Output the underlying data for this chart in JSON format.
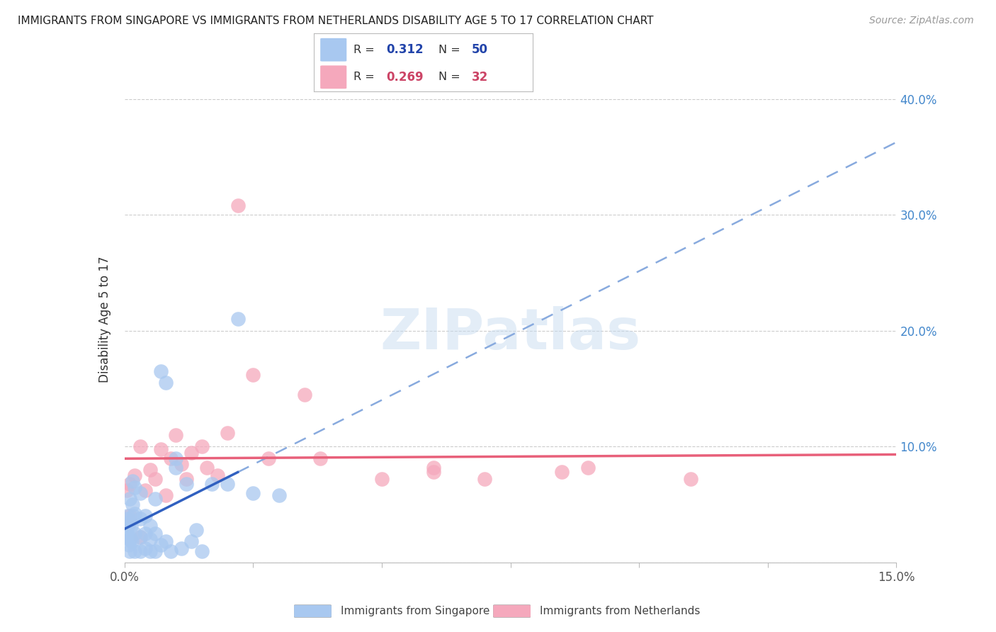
{
  "title": "IMMIGRANTS FROM SINGAPORE VS IMMIGRANTS FROM NETHERLANDS DISABILITY AGE 5 TO 17 CORRELATION CHART",
  "source": "Source: ZipAtlas.com",
  "ylabel": "Disability Age 5 to 17",
  "xlim": [
    0.0,
    0.15
  ],
  "ylim": [
    0.0,
    0.42
  ],
  "color_singapore": "#A8C8F0",
  "color_netherlands": "#F5A8BC",
  "line_color_singapore_solid": "#3060C0",
  "line_color_singapore_dash": "#88AADE",
  "line_color_netherlands": "#E8607A",
  "watermark_color": "#C8DCF0",
  "watermark": "ZIPatlas",
  "r_sg": "0.312",
  "n_sg": "50",
  "r_nl": "0.269",
  "n_nl": "32",
  "legend_text_color": "#2244AA",
  "legend_r_color_sg": "#2244AA",
  "legend_r_color_nl": "#CC4466",
  "sg_x": [
    0.0003,
    0.0005,
    0.0006,
    0.0007,
    0.0008,
    0.0009,
    0.001,
    0.001,
    0.001,
    0.001,
    0.0012,
    0.0013,
    0.0014,
    0.0015,
    0.0016,
    0.0017,
    0.002,
    0.002,
    0.002,
    0.002,
    0.003,
    0.003,
    0.003,
    0.003,
    0.004,
    0.004,
    0.004,
    0.005,
    0.005,
    0.005,
    0.006,
    0.006,
    0.006,
    0.007,
    0.007,
    0.008,
    0.008,
    0.009,
    0.01,
    0.01,
    0.011,
    0.012,
    0.013,
    0.014,
    0.015,
    0.017,
    0.02,
    0.022,
    0.025,
    0.03
  ],
  "sg_y": [
    0.025,
    0.038,
    0.04,
    0.032,
    0.02,
    0.015,
    0.01,
    0.022,
    0.035,
    0.055,
    0.02,
    0.032,
    0.018,
    0.07,
    0.05,
    0.04,
    0.01,
    0.025,
    0.042,
    0.065,
    0.01,
    0.022,
    0.038,
    0.06,
    0.012,
    0.025,
    0.04,
    0.01,
    0.02,
    0.032,
    0.01,
    0.025,
    0.055,
    0.015,
    0.165,
    0.018,
    0.155,
    0.01,
    0.082,
    0.09,
    0.012,
    0.068,
    0.018,
    0.028,
    0.01,
    0.068,
    0.068,
    0.21,
    0.06,
    0.058
  ],
  "nl_x": [
    0.0005,
    0.001,
    0.001,
    0.002,
    0.003,
    0.003,
    0.004,
    0.005,
    0.006,
    0.007,
    0.008,
    0.009,
    0.01,
    0.011,
    0.012,
    0.013,
    0.015,
    0.016,
    0.018,
    0.02,
    0.022,
    0.025,
    0.028,
    0.035,
    0.038,
    0.05,
    0.06,
    0.07,
    0.09,
    0.11,
    0.06,
    0.085
  ],
  "nl_y": [
    0.062,
    0.04,
    0.068,
    0.075,
    0.022,
    0.1,
    0.062,
    0.08,
    0.072,
    0.098,
    0.058,
    0.09,
    0.11,
    0.085,
    0.072,
    0.095,
    0.1,
    0.082,
    0.075,
    0.112,
    0.308,
    0.162,
    0.09,
    0.145,
    0.09,
    0.072,
    0.082,
    0.072,
    0.082,
    0.072,
    0.078,
    0.078
  ],
  "sg_line_x_start": 0.0,
  "sg_line_x_end_solid": 0.022,
  "sg_line_x_end": 0.15,
  "nl_line_x_start": 0.0,
  "nl_line_x_end": 0.15
}
